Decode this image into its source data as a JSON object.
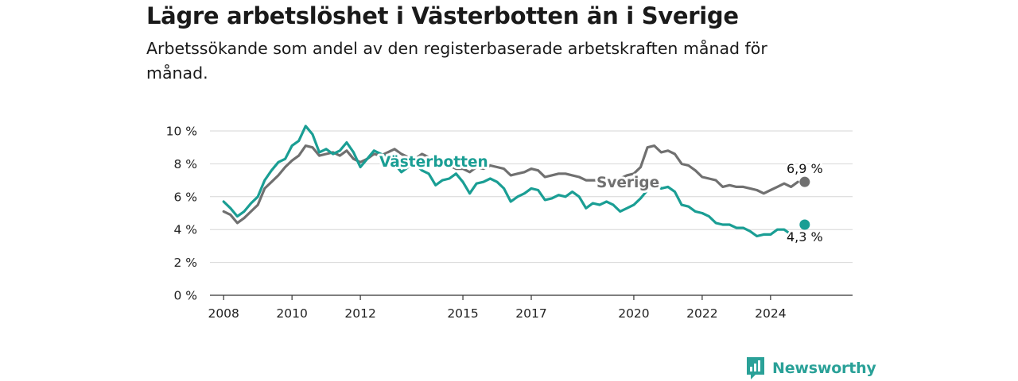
{
  "header": {
    "title": "Lägre arbetslöshet i Västerbotten än i Sverige",
    "subtitle": "Arbetssökande som andel av den registerbaserade arbetskraften månad för månad."
  },
  "brand": {
    "name": "Newsworthy",
    "icon": "newsworthy-logo-icon",
    "color": "#2aa198"
  },
  "chart_data": {
    "type": "line",
    "title": "Lägre arbetslöshet i Västerbotten än i Sverige",
    "subtitle": "Arbetssökande som andel av den registerbaserade arbetskraften månad för månad.",
    "xlabel": "",
    "ylabel": "",
    "xlim": [
      2007.6,
      2026.4
    ],
    "ylim": [
      0,
      10
    ],
    "yticks": [
      {
        "value": 0,
        "label": "0 %"
      },
      {
        "value": 2,
        "label": "2 %"
      },
      {
        "value": 4,
        "label": "4 %"
      },
      {
        "value": 6,
        "label": "6 %"
      },
      {
        "value": 8,
        "label": "8 %"
      },
      {
        "value": 10,
        "label": "10 %"
      }
    ],
    "xticks": [
      {
        "value": 2008,
        "label": "2008"
      },
      {
        "value": 2010,
        "label": "2010"
      },
      {
        "value": 2012,
        "label": "2012"
      },
      {
        "value": 2015,
        "label": "2015"
      },
      {
        "value": 2017,
        "label": "2017"
      },
      {
        "value": 2020,
        "label": "2020"
      },
      {
        "value": 2022,
        "label": "2022"
      },
      {
        "value": 2024,
        "label": "2024"
      }
    ],
    "grid": true,
    "legend": "inline labels",
    "series": [
      {
        "name": "Sverige",
        "color": "#707070",
        "end_label": "6,9 %",
        "points": [
          [
            2008.0,
            5.1
          ],
          [
            2008.2,
            4.9
          ],
          [
            2008.4,
            4.4
          ],
          [
            2008.6,
            4.7
          ],
          [
            2008.8,
            5.1
          ],
          [
            2009.0,
            5.5
          ],
          [
            2009.2,
            6.5
          ],
          [
            2009.4,
            6.9
          ],
          [
            2009.6,
            7.3
          ],
          [
            2009.8,
            7.8
          ],
          [
            2010.0,
            8.2
          ],
          [
            2010.2,
            8.5
          ],
          [
            2010.4,
            9.1
          ],
          [
            2010.6,
            9.0
          ],
          [
            2010.8,
            8.5
          ],
          [
            2011.0,
            8.6
          ],
          [
            2011.2,
            8.7
          ],
          [
            2011.4,
            8.5
          ],
          [
            2011.6,
            8.8
          ],
          [
            2011.8,
            8.3
          ],
          [
            2012.0,
            8.1
          ],
          [
            2012.2,
            8.3
          ],
          [
            2012.4,
            8.6
          ],
          [
            2012.6,
            8.5
          ],
          [
            2012.8,
            8.7
          ],
          [
            2013.0,
            8.9
          ],
          [
            2013.2,
            8.6
          ],
          [
            2013.4,
            8.4
          ],
          [
            2013.6,
            8.3
          ],
          [
            2013.8,
            8.6
          ],
          [
            2014.0,
            8.4
          ],
          [
            2014.2,
            8.2
          ],
          [
            2014.4,
            8.0
          ],
          [
            2014.6,
            7.9
          ],
          [
            2014.8,
            7.7
          ],
          [
            2015.0,
            7.7
          ],
          [
            2015.2,
            7.5
          ],
          [
            2015.4,
            7.8
          ],
          [
            2015.6,
            7.7
          ],
          [
            2015.8,
            7.9
          ],
          [
            2016.0,
            7.8
          ],
          [
            2016.2,
            7.7
          ],
          [
            2016.4,
            7.3
          ],
          [
            2016.6,
            7.4
          ],
          [
            2016.8,
            7.5
          ],
          [
            2017.0,
            7.7
          ],
          [
            2017.2,
            7.6
          ],
          [
            2017.4,
            7.2
          ],
          [
            2017.6,
            7.3
          ],
          [
            2017.8,
            7.4
          ],
          [
            2018.0,
            7.4
          ],
          [
            2018.2,
            7.3
          ],
          [
            2018.4,
            7.2
          ],
          [
            2018.6,
            7.0
          ],
          [
            2018.8,
            7.0
          ],
          [
            2019.0,
            7.0
          ],
          [
            2019.2,
            7.1
          ],
          [
            2019.4,
            7.0
          ],
          [
            2019.6,
            7.1
          ],
          [
            2019.8,
            7.3
          ],
          [
            2020.0,
            7.4
          ],
          [
            2020.2,
            7.8
          ],
          [
            2020.4,
            9.0
          ],
          [
            2020.6,
            9.1
          ],
          [
            2020.8,
            8.7
          ],
          [
            2021.0,
            8.8
          ],
          [
            2021.2,
            8.6
          ],
          [
            2021.4,
            8.0
          ],
          [
            2021.6,
            7.9
          ],
          [
            2021.8,
            7.6
          ],
          [
            2022.0,
            7.2
          ],
          [
            2022.2,
            7.1
          ],
          [
            2022.4,
            7.0
          ],
          [
            2022.6,
            6.6
          ],
          [
            2022.8,
            6.7
          ],
          [
            2023.0,
            6.6
          ],
          [
            2023.2,
            6.6
          ],
          [
            2023.4,
            6.5
          ],
          [
            2023.6,
            6.4
          ],
          [
            2023.8,
            6.2
          ],
          [
            2024.0,
            6.4
          ],
          [
            2024.2,
            6.6
          ],
          [
            2024.4,
            6.8
          ],
          [
            2024.6,
            6.6
          ],
          [
            2024.8,
            6.9
          ]
        ],
        "last_point": [
          2025.0,
          6.9
        ]
      },
      {
        "name": "Västerbotten",
        "color": "#1a9e94",
        "end_label": "4,3 %",
        "points": [
          [
            2008.0,
            5.7
          ],
          [
            2008.2,
            5.3
          ],
          [
            2008.4,
            4.8
          ],
          [
            2008.6,
            5.1
          ],
          [
            2008.8,
            5.6
          ],
          [
            2009.0,
            6.0
          ],
          [
            2009.2,
            7.0
          ],
          [
            2009.4,
            7.6
          ],
          [
            2009.6,
            8.1
          ],
          [
            2009.8,
            8.3
          ],
          [
            2010.0,
            9.1
          ],
          [
            2010.2,
            9.4
          ],
          [
            2010.4,
            10.3
          ],
          [
            2010.6,
            9.8
          ],
          [
            2010.8,
            8.7
          ],
          [
            2011.0,
            8.9
          ],
          [
            2011.2,
            8.6
          ],
          [
            2011.4,
            8.8
          ],
          [
            2011.6,
            9.3
          ],
          [
            2011.8,
            8.7
          ],
          [
            2012.0,
            7.8
          ],
          [
            2012.2,
            8.3
          ],
          [
            2012.4,
            8.8
          ],
          [
            2012.6,
            8.6
          ],
          [
            2012.8,
            8.4
          ],
          [
            2013.0,
            8.0
          ],
          [
            2013.2,
            7.5
          ],
          [
            2013.4,
            7.8
          ],
          [
            2013.6,
            8.0
          ],
          [
            2013.8,
            7.6
          ],
          [
            2014.0,
            7.4
          ],
          [
            2014.2,
            6.7
          ],
          [
            2014.4,
            7.0
          ],
          [
            2014.6,
            7.1
          ],
          [
            2014.8,
            7.4
          ],
          [
            2015.0,
            6.9
          ],
          [
            2015.2,
            6.2
          ],
          [
            2015.4,
            6.8
          ],
          [
            2015.6,
            6.9
          ],
          [
            2015.8,
            7.1
          ],
          [
            2016.0,
            6.9
          ],
          [
            2016.2,
            6.5
          ],
          [
            2016.4,
            5.7
          ],
          [
            2016.6,
            6.0
          ],
          [
            2016.8,
            6.2
          ],
          [
            2017.0,
            6.5
          ],
          [
            2017.2,
            6.4
          ],
          [
            2017.4,
            5.8
          ],
          [
            2017.6,
            5.9
          ],
          [
            2017.8,
            6.1
          ],
          [
            2018.0,
            6.0
          ],
          [
            2018.2,
            6.3
          ],
          [
            2018.4,
            6.0
          ],
          [
            2018.6,
            5.3
          ],
          [
            2018.8,
            5.6
          ],
          [
            2019.0,
            5.5
          ],
          [
            2019.2,
            5.7
          ],
          [
            2019.4,
            5.5
          ],
          [
            2019.6,
            5.1
          ],
          [
            2019.8,
            5.3
          ],
          [
            2020.0,
            5.5
          ],
          [
            2020.2,
            5.9
          ],
          [
            2020.4,
            6.4
          ],
          [
            2020.6,
            6.8
          ],
          [
            2020.8,
            6.5
          ],
          [
            2021.0,
            6.6
          ],
          [
            2021.2,
            6.3
          ],
          [
            2021.4,
            5.5
          ],
          [
            2021.6,
            5.4
          ],
          [
            2021.8,
            5.1
          ],
          [
            2022.0,
            5.0
          ],
          [
            2022.2,
            4.8
          ],
          [
            2022.4,
            4.4
          ],
          [
            2022.6,
            4.3
          ],
          [
            2022.8,
            4.3
          ],
          [
            2023.0,
            4.1
          ],
          [
            2023.2,
            4.1
          ],
          [
            2023.4,
            3.9
          ],
          [
            2023.6,
            3.6
          ],
          [
            2023.8,
            3.7
          ],
          [
            2024.0,
            3.7
          ],
          [
            2024.2,
            4.0
          ],
          [
            2024.4,
            4.0
          ],
          [
            2024.6,
            3.7
          ]
        ],
        "last_point": [
          2025.0,
          4.3
        ]
      }
    ]
  }
}
